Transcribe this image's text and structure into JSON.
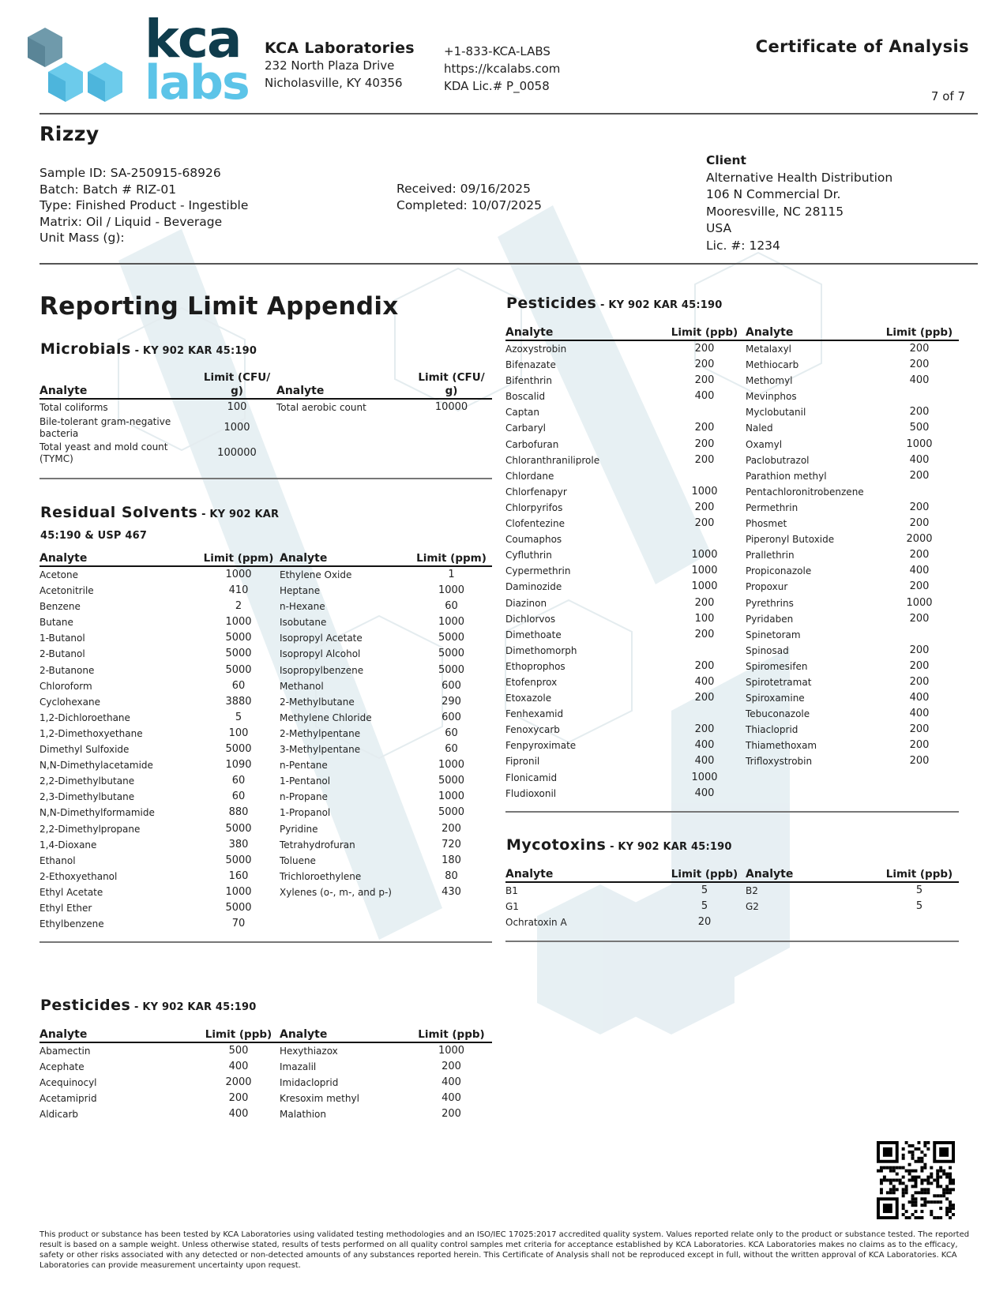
{
  "brand": {
    "logo_text_top": "kca",
    "logo_text_bottom": "labs",
    "primary_color": "#0f3c4c",
    "accent_color": "#5cc4e8"
  },
  "lab": {
    "name": "KCA Laboratories",
    "address1": "232 North Plaza Drive",
    "address2": "Nicholasville, KY 40356",
    "phone": "+1-833-KCA-LABS",
    "website": "https://kcalabs.com",
    "license": "KDA Lic.# P_0058"
  },
  "document": {
    "title": "Certificate of Analysis",
    "page": "7 of 7"
  },
  "product": {
    "name": "Rizzy",
    "sample_id": "Sample ID: SA-250915-68926",
    "batch": "Batch: Batch # RIZ-01",
    "type": "Type: Finished Product - Ingestible",
    "matrix": "Matrix: Oil / Liquid - Beverage",
    "unit_mass": "Unit Mass (g):",
    "received": "Received: 09/16/2025",
    "completed": "Completed: 10/07/2025"
  },
  "client": {
    "label": "Client",
    "name": "Alternative Health Distribution",
    "address1": "106 N Commercial Dr.",
    "address2": "Mooresville, NC 28115",
    "country": "USA",
    "license": "Lic. #: 1234"
  },
  "appendix_title": "Reporting Limit Appendix",
  "microbials": {
    "title": "Microbials",
    "ref": " - KY 902 KAR 45:190",
    "headers": [
      "Analyte",
      "Limit (CFU/ g)",
      "Analyte",
      "Limit (CFU/ g)"
    ],
    "rows": [
      [
        "Total coliforms",
        "100",
        "Total aerobic count",
        "10000"
      ],
      [
        "Bile-tolerant gram-negative bacteria",
        "1000",
        "",
        ""
      ],
      [
        "Total yeast and mold count (TYMC)",
        "100000",
        "",
        ""
      ]
    ]
  },
  "residual_solvents": {
    "title": "Residual Solvents",
    "ref": " - KY 902 KAR",
    "ref2": "45:190 & USP 467",
    "headers": [
      "Analyte",
      "Limit (ppm)",
      "Analyte",
      "Limit (ppm)"
    ],
    "rows": [
      [
        "Acetone",
        "1000",
        "Ethylene Oxide",
        "1"
      ],
      [
        "Acetonitrile",
        "410",
        "Heptane",
        "1000"
      ],
      [
        "Benzene",
        "2",
        "n-Hexane",
        "60"
      ],
      [
        "Butane",
        "1000",
        "Isobutane",
        "1000"
      ],
      [
        "1-Butanol",
        "5000",
        "Isopropyl Acetate",
        "5000"
      ],
      [
        "2-Butanol",
        "5000",
        "Isopropyl Alcohol",
        "5000"
      ],
      [
        "2-Butanone",
        "5000",
        "Isopropylbenzene",
        "5000"
      ],
      [
        "Chloroform",
        "60",
        "Methanol",
        "600"
      ],
      [
        "Cyclohexane",
        "3880",
        "2-Methylbutane",
        "290"
      ],
      [
        "1,2-Dichloroethane",
        "5",
        "Methylene Chloride",
        "600"
      ],
      [
        "1,2-Dimethoxyethane",
        "100",
        "2-Methylpentane",
        "60"
      ],
      [
        "Dimethyl Sulfoxide",
        "5000",
        "3-Methylpentane",
        "60"
      ],
      [
        "N,N-Dimethylacetamide",
        "1090",
        "n-Pentane",
        "1000"
      ],
      [
        "2,2-Dimethylbutane",
        "60",
        "1-Pentanol",
        "5000"
      ],
      [
        "2,3-Dimethylbutane",
        "60",
        "n-Propane",
        "1000"
      ],
      [
        "N,N-Dimethylformamide",
        "880",
        "1-Propanol",
        "5000"
      ],
      [
        "2,2-Dimethylpropane",
        "5000",
        "Pyridine",
        "200"
      ],
      [
        "1,4-Dioxane",
        "380",
        "Tetrahydrofuran",
        "720"
      ],
      [
        "Ethanol",
        "5000",
        "Toluene",
        "180"
      ],
      [
        "2-Ethoxyethanol",
        "160",
        "Trichloroethylene",
        "80"
      ],
      [
        "Ethyl Acetate",
        "1000",
        "Xylenes (o-, m-, and p-)",
        "430"
      ],
      [
        "Ethyl Ether",
        "5000",
        "",
        ""
      ],
      [
        "Ethylbenzene",
        "70",
        "",
        ""
      ]
    ]
  },
  "pesticides_left": {
    "title": "Pesticides",
    "ref": " - KY 902 KAR 45:190",
    "headers": [
      "Analyte",
      "Limit (ppb)",
      "Analyte",
      "Limit (ppb)"
    ],
    "rows": [
      [
        "Abamectin",
        "500",
        "Hexythiazox",
        "1000"
      ],
      [
        "Acephate",
        "400",
        "Imazalil",
        "200"
      ],
      [
        "Acequinocyl",
        "2000",
        "Imidacloprid",
        "400"
      ],
      [
        "Acetamiprid",
        "200",
        "Kresoxim methyl",
        "400"
      ],
      [
        "Aldicarb",
        "400",
        "Malathion",
        "200"
      ]
    ]
  },
  "pesticides_right": {
    "title": "Pesticides",
    "ref": " - KY 902 KAR 45:190",
    "headers": [
      "Analyte",
      "Limit (ppb)",
      "Analyte",
      "Limit (ppb)"
    ],
    "rows": [
      [
        "Azoxystrobin",
        "200",
        "Metalaxyl",
        "200"
      ],
      [
        "Bifenazate",
        "200",
        "Methiocarb",
        "200"
      ],
      [
        "Bifenthrin",
        "200",
        "Methomyl",
        "400"
      ],
      [
        "Boscalid",
        "400",
        "Mevinphos",
        ""
      ],
      [
        "Captan",
        "",
        "Myclobutanil",
        "200"
      ],
      [
        "Carbaryl",
        "200",
        "Naled",
        "500"
      ],
      [
        "Carbofuran",
        "200",
        "Oxamyl",
        "1000"
      ],
      [
        "Chloranthraniliprole",
        "200",
        "Paclobutrazol",
        "400"
      ],
      [
        "Chlordane",
        "",
        "Parathion methyl",
        "200"
      ],
      [
        "Chlorfenapyr",
        "1000",
        "Pentachloronitrobenzene",
        ""
      ],
      [
        "Chlorpyrifos",
        "200",
        "Permethrin",
        "200"
      ],
      [
        "Clofentezine",
        "200",
        "Phosmet",
        "200"
      ],
      [
        "Coumaphos",
        "",
        "Piperonyl Butoxide",
        "2000"
      ],
      [
        "Cyfluthrin",
        "1000",
        "Prallethrin",
        "200"
      ],
      [
        "Cypermethrin",
        "1000",
        "Propiconazole",
        "400"
      ],
      [
        "Daminozide",
        "1000",
        "Propoxur",
        "200"
      ],
      [
        "Diazinon",
        "200",
        "Pyrethrins",
        "1000"
      ],
      [
        "Dichlorvos",
        "100",
        "Pyridaben",
        "200"
      ],
      [
        "Dimethoate",
        "200",
        "Spinetoram",
        ""
      ],
      [
        "Dimethomorph",
        "",
        "Spinosad",
        "200"
      ],
      [
        "Ethoprophos",
        "200",
        "Spiromesifen",
        "200"
      ],
      [
        "Etofenprox",
        "400",
        "Spirotetramat",
        "200"
      ],
      [
        "Etoxazole",
        "200",
        "Spiroxamine",
        "400"
      ],
      [
        "Fenhexamid",
        "",
        "Tebuconazole",
        "400"
      ],
      [
        "Fenoxycarb",
        "200",
        "Thiacloprid",
        "200"
      ],
      [
        "Fenpyroximate",
        "400",
        "Thiamethoxam",
        "200"
      ],
      [
        "Fipronil",
        "400",
        "Trifloxystrobin",
        "200"
      ],
      [
        "Flonicamid",
        "1000",
        "",
        ""
      ],
      [
        "Fludioxonil",
        "400",
        "",
        ""
      ]
    ]
  },
  "mycotoxins": {
    "title": "Mycotoxins",
    "ref": " - KY 902 KAR 45:190",
    "headers": [
      "Analyte",
      "Limit (ppb)",
      "Analyte",
      "Limit (ppb)"
    ],
    "rows": [
      [
        "B1",
        "5",
        "B2",
        "5"
      ],
      [
        "G1",
        "5",
        "G2",
        "5"
      ],
      [
        "Ochratoxin A",
        "20",
        "",
        ""
      ]
    ]
  },
  "footer": {
    "disclaimer": "This product or substance has been tested by KCA Laboratories using validated testing methodologies and an ISO/IEC 17025:2017 accredited quality system. Values reported relate only to the product or substance tested. The reported result is based on a sample weight. Unless otherwise stated, results of tests performed on all quality control samples met criteria for acceptance established by KCA Laboratories. KCA Laboratories makes no claims as to the efficacy, safety or other risks associated with any detected or non-detected amounts of any substances reported herein. This Certificate of Analysis shall not be reproduced except in full, without the written approval of KCA Laboratories. KCA Laboratories can provide measurement uncertainty upon request."
  },
  "qr_code": {
    "icon": "qr-code"
  }
}
